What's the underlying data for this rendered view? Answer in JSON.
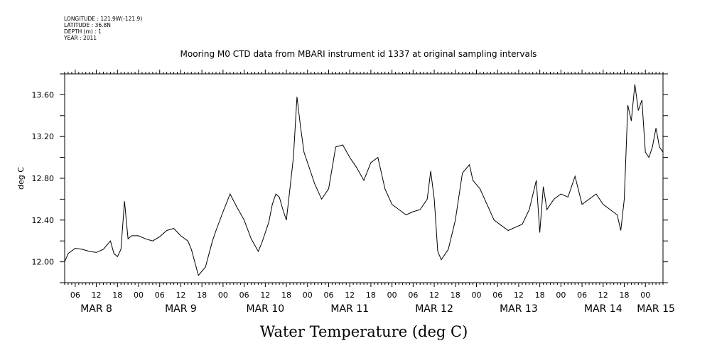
{
  "header": {
    "longitude": "LONGITUDE : 121.9W(-121.9)",
    "latitude": "LATITUDE : 36.8N",
    "depth": "DEPTH (m) : 1",
    "year": "YEAR : 2011"
  },
  "chart_data": {
    "type": "line",
    "title": "Mooring M0 CTD data from MBARI instrument id 1337 at original sampling intervals",
    "xlabel": "Water Temperature (deg C)",
    "ylabel": "deg C",
    "ylim": [
      11.8,
      13.8
    ],
    "y_ticks": [
      "12.00",
      "12.40",
      "12.80",
      "13.20",
      "13.60"
    ],
    "xlim": [
      "2011-03-08T03:00",
      "2011-03-15T05:00"
    ],
    "x_hour_ticks": [
      "06",
      "12",
      "18",
      "00",
      "06",
      "12",
      "18",
      "00",
      "06",
      "12",
      "18",
      "00",
      "06",
      "12",
      "18",
      "00",
      "06",
      "12",
      "18",
      "00",
      "06",
      "12",
      "18",
      "00",
      "06",
      "12",
      "18",
      "00"
    ],
    "x_day_labels": [
      "MAR  8",
      "MAR  9",
      "MAR 10",
      "MAR 11",
      "MAR 12",
      "MAR 13",
      "MAR 14",
      "MAR 15"
    ],
    "grid": false,
    "series": [
      {
        "x": [
          "2011-03-08T03:00",
          "2011-03-08T04:00",
          "2011-03-08T06:00",
          "2011-03-08T08:00",
          "2011-03-08T10:00",
          "2011-03-08T12:00",
          "2011-03-08T14:00",
          "2011-03-08T16:00",
          "2011-03-08T17:00",
          "2011-03-08T18:00",
          "2011-03-08T19:00",
          "2011-03-08T20:00",
          "2011-03-08T21:00",
          "2011-03-08T22:00",
          "2011-03-09T00:00",
          "2011-03-09T02:00",
          "2011-03-09T04:00",
          "2011-03-09T06:00",
          "2011-03-09T08:00",
          "2011-03-09T10:00",
          "2011-03-09T12:00",
          "2011-03-09T14:00",
          "2011-03-09T15:00",
          "2011-03-09T17:00",
          "2011-03-09T19:00",
          "2011-03-09T21:00",
          "2011-03-09T22:00",
          "2011-03-10T00:00",
          "2011-03-10T02:00",
          "2011-03-10T04:00",
          "2011-03-10T06:00",
          "2011-03-10T08:00",
          "2011-03-10T10:00",
          "2011-03-10T11:00",
          "2011-03-10T13:00",
          "2011-03-10T14:00",
          "2011-03-10T15:00",
          "2011-03-10T16:00",
          "2011-03-10T17:00",
          "2011-03-10T18:00",
          "2011-03-10T19:00",
          "2011-03-10T20:00",
          "2011-03-10T21:00",
          "2011-03-10T22:00",
          "2011-03-10T23:00",
          "2011-03-11T00:00",
          "2011-03-11T02:00",
          "2011-03-11T04:00",
          "2011-03-11T06:00",
          "2011-03-11T08:00",
          "2011-03-11T10:00",
          "2011-03-11T12:00",
          "2011-03-11T14:00",
          "2011-03-11T16:00",
          "2011-03-11T18:00",
          "2011-03-11T20:00",
          "2011-03-11T22:00",
          "2011-03-12T00:00",
          "2011-03-12T02:00",
          "2011-03-12T04:00",
          "2011-03-12T06:00",
          "2011-03-12T08:00",
          "2011-03-12T10:00",
          "2011-03-12T11:00",
          "2011-03-12T12:00",
          "2011-03-12T13:00",
          "2011-03-12T14:00",
          "2011-03-12T16:00",
          "2011-03-12T18:00",
          "2011-03-12T20:00",
          "2011-03-12T22:00",
          "2011-03-12T23:00",
          "2011-03-13T01:00",
          "2011-03-13T03:00",
          "2011-03-13T05:00",
          "2011-03-13T07:00",
          "2011-03-13T09:00",
          "2011-03-13T11:00",
          "2011-03-13T13:00",
          "2011-03-13T15:00",
          "2011-03-13T17:00",
          "2011-03-13T18:00",
          "2011-03-13T19:00",
          "2011-03-13T20:00",
          "2011-03-13T21:00",
          "2011-03-13T22:00",
          "2011-03-14T00:00",
          "2011-03-14T02:00",
          "2011-03-14T04:00",
          "2011-03-14T06:00",
          "2011-03-14T08:00",
          "2011-03-14T10:00",
          "2011-03-14T12:00",
          "2011-03-14T14:00",
          "2011-03-14T16:00",
          "2011-03-14T17:00",
          "2011-03-14T18:00",
          "2011-03-14T19:00",
          "2011-03-14T20:00",
          "2011-03-14T21:00",
          "2011-03-14T22:00",
          "2011-03-14T23:00",
          "2011-03-15T00:00",
          "2011-03-15T01:00",
          "2011-03-15T02:00",
          "2011-03-15T03:00",
          "2011-03-15T04:00",
          "2011-03-15T05:00"
        ],
        "values": [
          12.0,
          12.08,
          12.13,
          12.12,
          12.1,
          12.09,
          12.12,
          12.2,
          12.08,
          12.05,
          12.12,
          12.58,
          12.22,
          12.25,
          12.25,
          12.22,
          12.2,
          12.24,
          12.3,
          12.32,
          12.25,
          12.2,
          12.12,
          11.87,
          11.95,
          12.2,
          12.3,
          12.48,
          12.65,
          12.52,
          12.4,
          12.22,
          12.1,
          12.18,
          12.38,
          12.55,
          12.65,
          12.62,
          12.5,
          12.4,
          12.7,
          13.0,
          13.58,
          13.3,
          13.05,
          12.95,
          12.75,
          12.6,
          12.7,
          13.1,
          13.12,
          13.0,
          12.9,
          12.78,
          12.95,
          13.0,
          12.7,
          12.55,
          12.5,
          12.45,
          12.48,
          12.5,
          12.6,
          12.87,
          12.6,
          12.1,
          12.02,
          12.12,
          12.4,
          12.85,
          12.93,
          12.78,
          12.7,
          12.55,
          12.4,
          12.35,
          12.3,
          12.33,
          12.36,
          12.5,
          12.78,
          12.28,
          12.72,
          12.5,
          12.55,
          12.6,
          12.65,
          12.62,
          12.82,
          12.55,
          12.6,
          12.65,
          12.55,
          12.5,
          12.45,
          12.3,
          12.6,
          13.5,
          13.35,
          13.7,
          13.45,
          13.55,
          13.05,
          13.0,
          13.1,
          13.28,
          13.1,
          13.05
        ]
      }
    ]
  }
}
